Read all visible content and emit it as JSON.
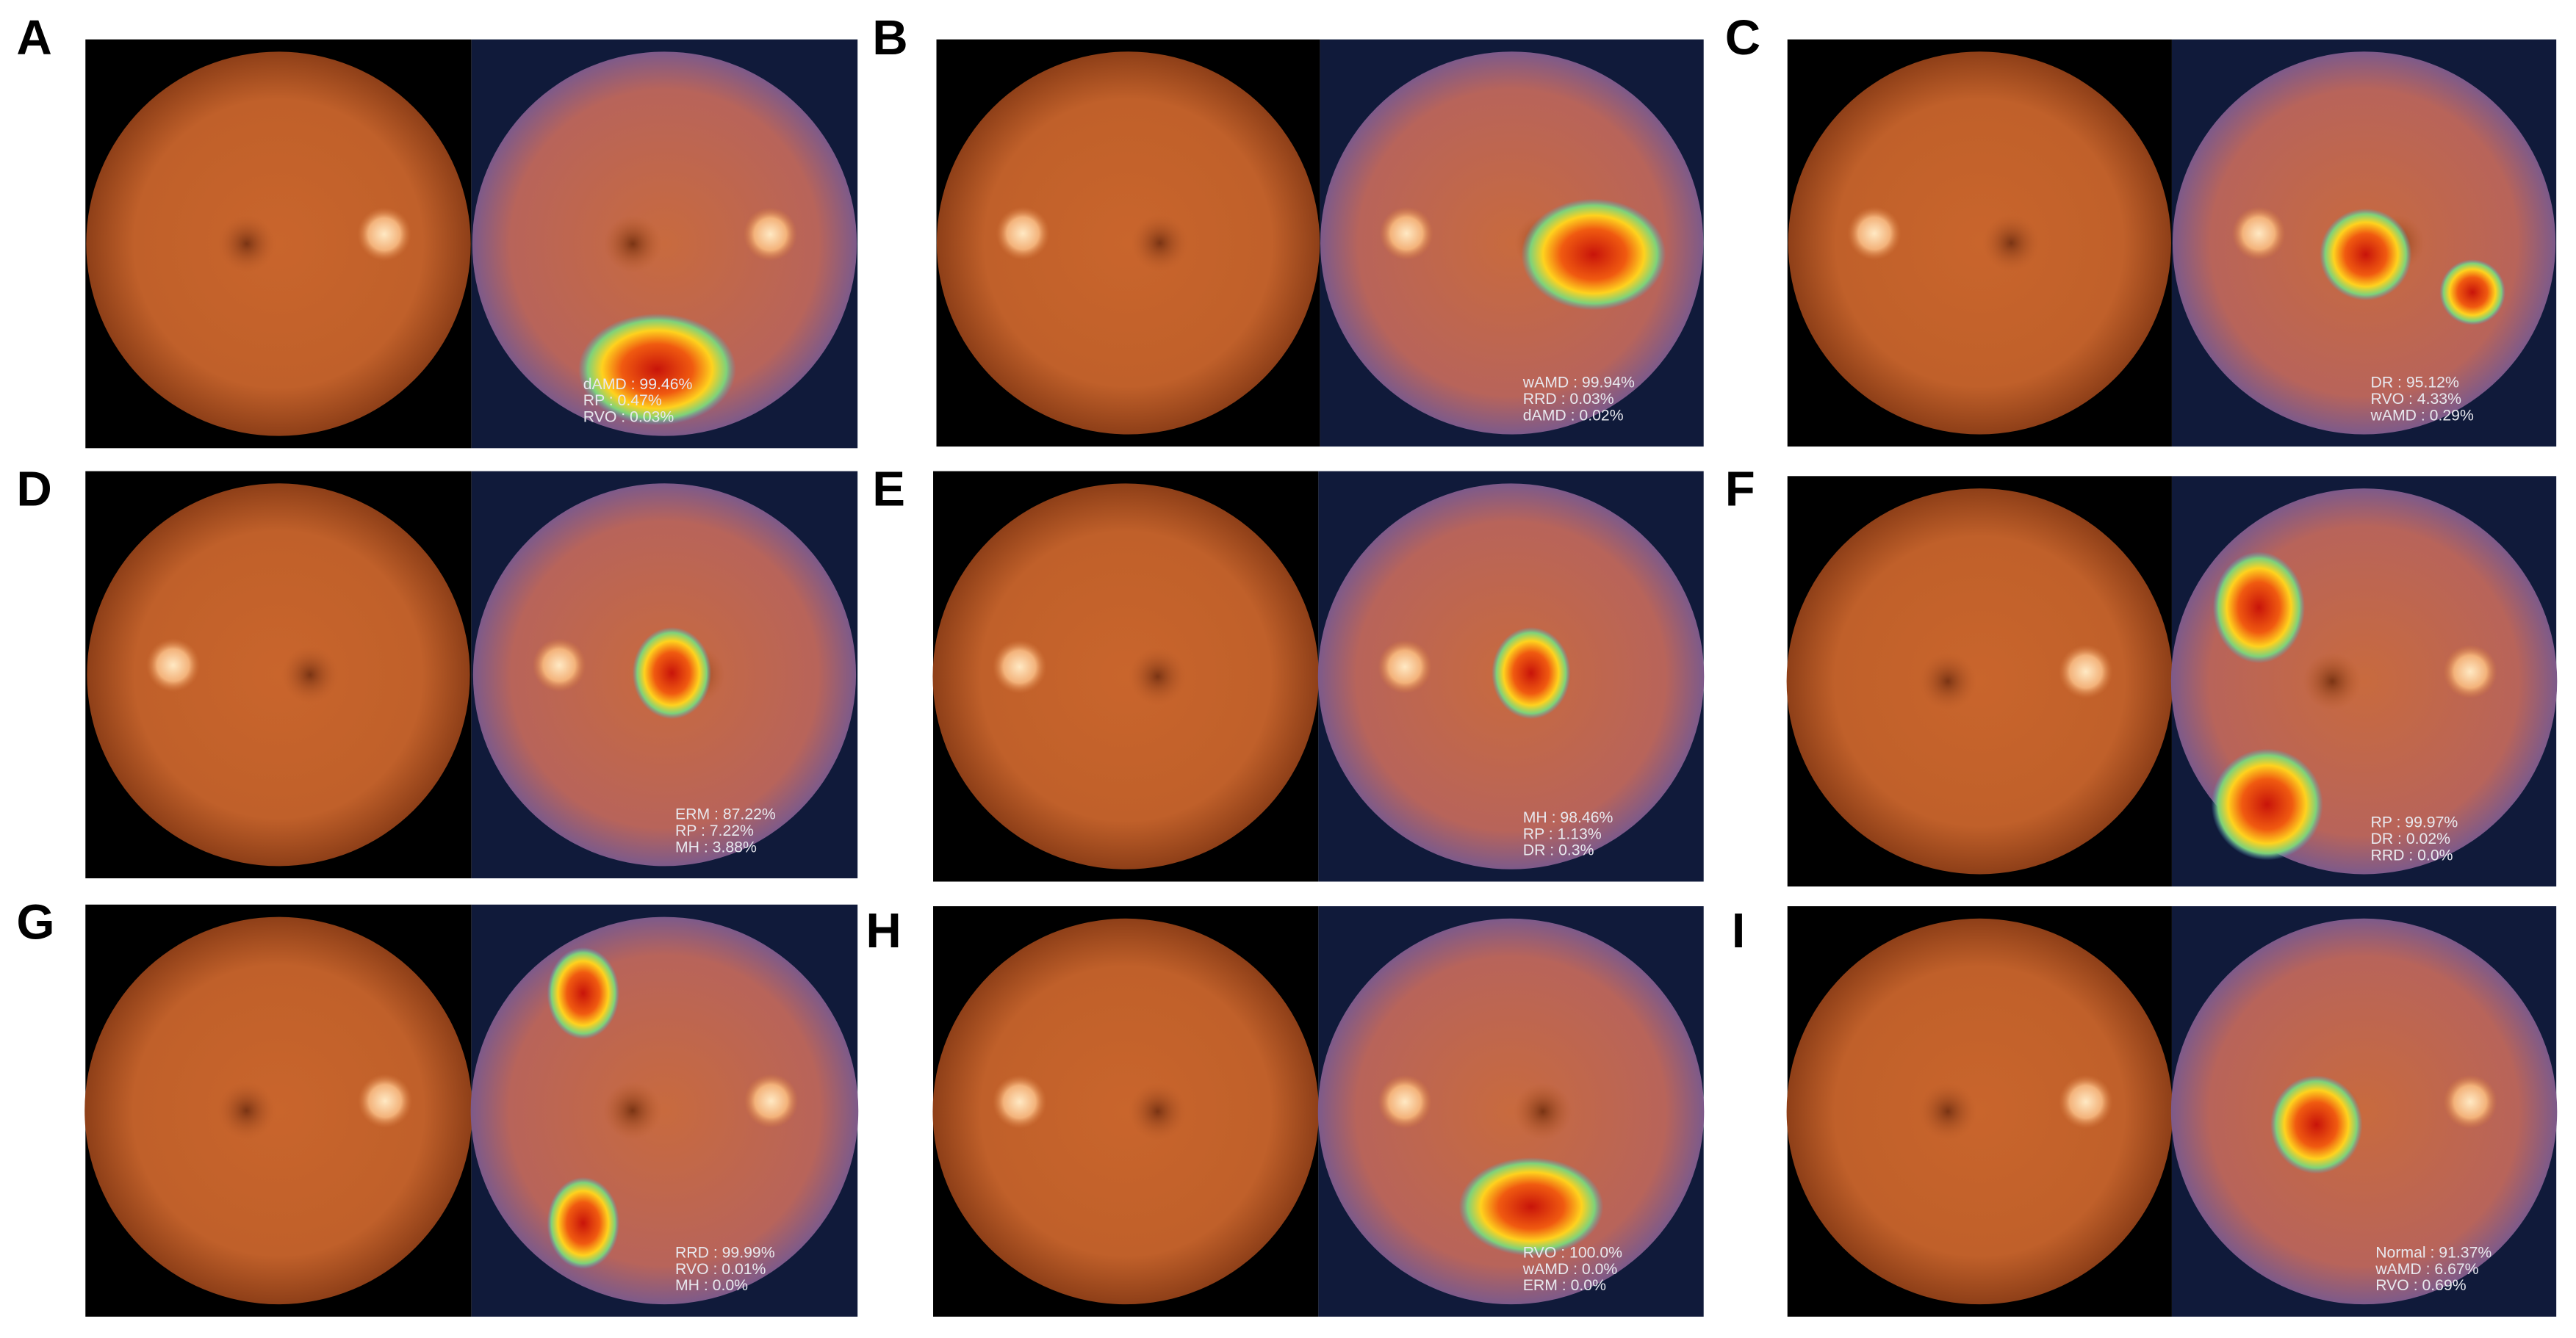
{
  "panels": [
    {
      "label": "A",
      "predictions": [
        "dAMD : 99.46%",
        "RP : 0.47%",
        "RVO : 0.03%"
      ]
    },
    {
      "label": "B",
      "predictions": [
        "wAMD : 99.94%",
        "RRD : 0.03%",
        "dAMD : 0.02%"
      ]
    },
    {
      "label": "C",
      "predictions": [
        "DR : 95.12%",
        "RVO : 4.33%",
        "wAMD : 0.29%"
      ]
    },
    {
      "label": "D",
      "predictions": [
        "ERM : 87.22%",
        "RP : 7.22%",
        "MH : 3.88%"
      ]
    },
    {
      "label": "E",
      "predictions": [
        "MH : 98.46%",
        "RP : 1.13%",
        "DR : 0.3%"
      ]
    },
    {
      "label": "F",
      "predictions": [
        "RP : 99.97%",
        "DR : 0.02%",
        "RRD : 0.0%"
      ]
    },
    {
      "label": "G",
      "predictions": [
        "RRD : 99.99%",
        "RVO : 0.01%",
        "MH : 0.0%"
      ]
    },
    {
      "label": "H",
      "predictions": [
        "RVO : 100.0%",
        "wAMD : 0.0%",
        "ERM : 0.0%"
      ]
    },
    {
      "label": "I",
      "predictions": [
        "Normal : 91.37%",
        "wAMD : 6.67%",
        "RVO : 0.69%"
      ]
    }
  ]
}
